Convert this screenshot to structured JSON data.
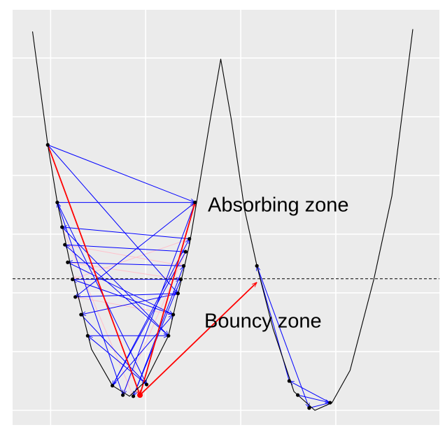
{
  "chart_data": {
    "type": "line",
    "annotations": [
      "Absorbing zone",
      "Bouncy zone"
    ],
    "x": [
      -2.19,
      -2.03,
      -1.93,
      -1.79,
      -1.57,
      -1.35,
      -1.17,
      -1.0,
      -0.76,
      -0.54,
      -0.47,
      -0.32,
      -0.21,
      -0.1,
      0.04,
      0.17,
      0.34,
      0.56,
      0.78,
      0.96,
      1.15,
      1.4,
      1.59,
      1.81
    ],
    "y": [
      6.45,
      4.52,
      3.54,
      2.46,
      1.04,
      0.42,
      0.24,
      0.5,
      1.27,
      2.82,
      3.49,
      4.96,
      5.98,
      4.96,
      3.42,
      2.46,
      1.39,
      0.32,
      0.0,
      0.13,
      0.68,
      2.23,
      3.65,
      6.49
    ],
    "color": "#000000",
    "hline": 2.24,
    "xlim": [
      -2.4,
      2.09
    ],
    "ylim": [
      -0.25,
      6.82
    ],
    "xticks": [
      -2,
      -1,
      0,
      1
    ],
    "yticks": [
      0,
      1,
      2,
      3,
      4,
      5,
      6
    ],
    "grid": true,
    "arrow_groups": [
      {
        "color": "#ffc0cb",
        "x0": [
          -1.85,
          -0.54,
          -1.82,
          -0.71,
          -1.68,
          -1.88,
          -0.58
        ],
        "y0": [
          2.82,
          2.92,
          2.52,
          1.63,
          1.63,
          3.12,
          2.7
        ],
        "x1": [
          -0.6,
          -1.77,
          -0.63,
          -1.74,
          -0.66,
          -1.13,
          -1.24
        ],
        "y1": [
          2.46,
          2.23,
          2.23,
          1.93,
          1.99,
          0.24,
          0.26
        ]
      },
      {
        "color": "#0000ff",
        "x0": [
          -2.03,
          -2.03,
          -1.93,
          -0.48,
          -1.24,
          -1.93,
          -1.35,
          -0.54,
          -1.88,
          -0.76,
          -1.85,
          -0.58,
          -1.13,
          -0.6,
          -1.82,
          -0.71,
          -1.77,
          -0.63,
          -1.74,
          -0.66,
          -1.68,
          -1.61,
          -0.99,
          -0.48,
          -1.35,
          0.17,
          0.72,
          0.94,
          0.51,
          0.6
        ],
        "y0": [
          4.52,
          4.52,
          3.54,
          3.54,
          0.26,
          3.54,
          0.42,
          2.92,
          3.12,
          1.27,
          2.82,
          2.7,
          0.24,
          2.46,
          2.52,
          1.63,
          2.23,
          2.23,
          1.93,
          1.99,
          1.63,
          1.27,
          0.44,
          3.54,
          0.42,
          2.46,
          0.04,
          0.13,
          0.5,
          0.26
        ],
        "x1": [
          -0.48,
          -0.66,
          -0.48,
          -1.24,
          -1.93,
          -0.99,
          -0.54,
          -1.88,
          -0.76,
          -1.85,
          -0.58,
          -1.35,
          -0.6,
          -1.82,
          -0.71,
          -1.77,
          -0.63,
          -1.13,
          -0.66,
          -1.68,
          -0.99,
          -0.76,
          -1.61,
          -1.74,
          -0.71,
          0.72,
          0.94,
          0.51,
          0.17,
          0.94
        ],
        "y1": [
          3.54,
          1.99,
          3.54,
          0.26,
          3.54,
          0.44,
          2.92,
          3.12,
          1.27,
          2.82,
          2.7,
          0.42,
          2.46,
          2.52,
          1.63,
          2.23,
          2.23,
          0.24,
          1.99,
          1.63,
          0.44,
          1.27,
          1.27,
          1.93,
          1.63,
          0.04,
          0.13,
          0.5,
          2.46,
          0.13
        ]
      },
      {
        "color": "#ff0000",
        "x0": [
          -2.03,
          -1.06,
          -1.06
        ],
        "y0": [
          4.52,
          0.26,
          0.26
        ],
        "x1": [
          -1.06,
          -0.48,
          0.17
        ],
        "y1": [
          0.26,
          3.54,
          2.18
        ]
      }
    ],
    "points": {
      "color": "#000000",
      "x": [
        -2.03,
        -1.93,
        -1.88,
        -1.85,
        -1.82,
        -1.77,
        -1.74,
        -1.68,
        -1.61,
        -0.48,
        -0.54,
        -0.58,
        -0.6,
        -0.63,
        -0.66,
        -0.71,
        -0.76,
        -1.35,
        -1.24,
        -1.13,
        -0.99,
        0.17,
        0.51,
        0.72,
        0.94,
        0.6
      ],
      "y": [
        4.52,
        3.54,
        3.12,
        2.82,
        2.52,
        2.23,
        1.93,
        1.63,
        1.27,
        3.54,
        2.92,
        2.7,
        2.46,
        2.23,
        1.99,
        1.63,
        1.27,
        0.42,
        0.26,
        0.24,
        0.44,
        2.46,
        0.5,
        0.04,
        0.13,
        0.26
      ]
    },
    "highlight": {
      "x": -1.06,
      "y": 0.26,
      "color": "#ff0000"
    }
  }
}
